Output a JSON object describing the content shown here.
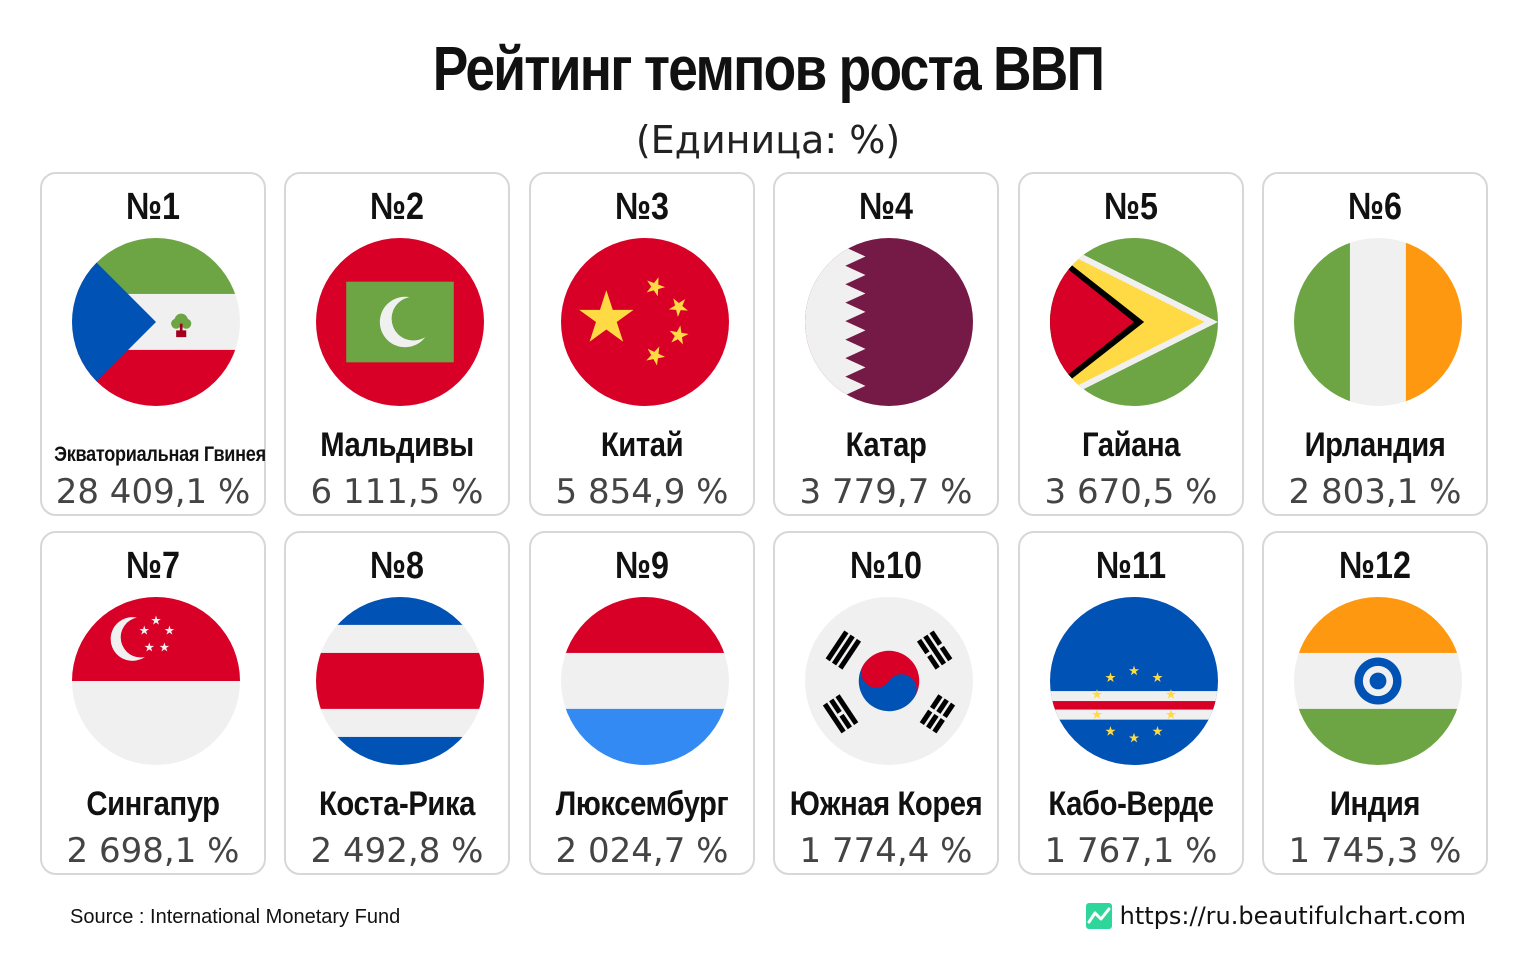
{
  "title": "Рейтинг темпов роста ВВП",
  "subtitle": "(Единица: %)",
  "footer": {
    "source": "Source : International Monetary Fund",
    "site": "https://ru.beautifulchart.com",
    "site_icon": "line-chart-icon"
  },
  "colors": {
    "card_border": "#d7d7d7",
    "value_text": "#444444",
    "site_icon": "#2fd69b"
  },
  "chart_data": {
    "type": "table",
    "title": "Рейтинг темпов роста ВВП",
    "unit": "%",
    "columns": [
      "rank",
      "country",
      "value"
    ],
    "rows": [
      {
        "rank": "№1",
        "country": "Экваториальная Гвинея",
        "value": "28 409,1 %",
        "number": 28409.1,
        "flag_icon": "equatorial-guinea-flag-icon"
      },
      {
        "rank": "№2",
        "country": "Мальдивы",
        "value": "6 111,5 %",
        "number": 6111.5,
        "flag_icon": "maldives-flag-icon"
      },
      {
        "rank": "№3",
        "country": "Китай",
        "value": "5 854,9 %",
        "number": 5854.9,
        "flag_icon": "china-flag-icon"
      },
      {
        "rank": "№4",
        "country": "Катар",
        "value": "3 779,7 %",
        "number": 3779.7,
        "flag_icon": "qatar-flag-icon"
      },
      {
        "rank": "№5",
        "country": "Гайана",
        "value": "3 670,5 %",
        "number": 3670.5,
        "flag_icon": "guyana-flag-icon"
      },
      {
        "rank": "№6",
        "country": "Ирландия",
        "value": "2 803,1 %",
        "number": 2803.1,
        "flag_icon": "ireland-flag-icon"
      },
      {
        "rank": "№7",
        "country": "Сингапур",
        "value": "2 698,1 %",
        "number": 2698.1,
        "flag_icon": "singapore-flag-icon"
      },
      {
        "rank": "№8",
        "country": "Коста-Рика",
        "value": "2 492,8 %",
        "number": 2492.8,
        "flag_icon": "costa-rica-flag-icon"
      },
      {
        "rank": "№9",
        "country": "Люксембург",
        "value": "2 024,7 %",
        "number": 2024.7,
        "flag_icon": "luxembourg-flag-icon"
      },
      {
        "rank": "№10",
        "country": "Южная Корея",
        "value": "1 774,4 %",
        "number": 1774.4,
        "flag_icon": "south-korea-flag-icon"
      },
      {
        "rank": "№11",
        "country": "Кабо-Верде",
        "value": "1 767,1 %",
        "number": 1767.1,
        "flag_icon": "cape-verde-flag-icon"
      },
      {
        "rank": "№12",
        "country": "Индия",
        "value": "1 745,3 %",
        "number": 1745.3,
        "flag_icon": "india-flag-icon"
      }
    ]
  }
}
